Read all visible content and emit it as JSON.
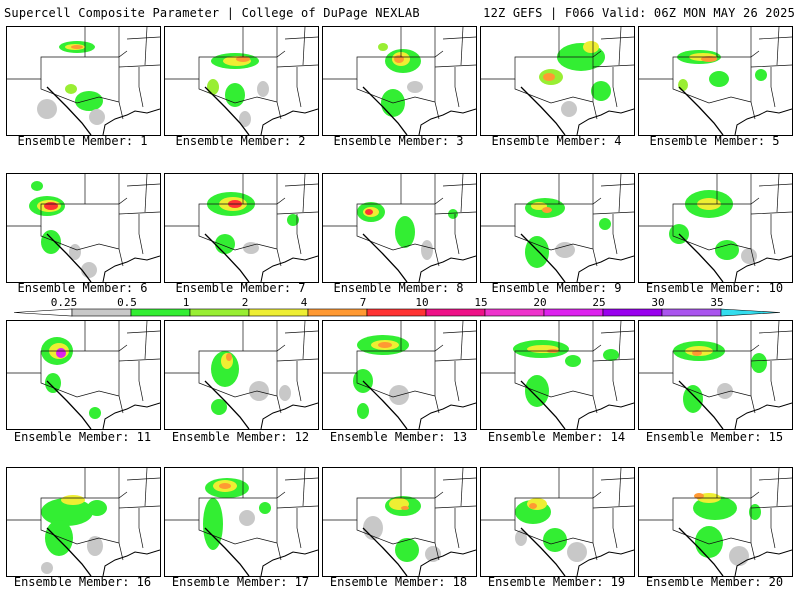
{
  "header": {
    "title_left": "Supercell Composite Parameter | College of DuPage NEXLAB",
    "title_right": "12Z GEFS | F066 Valid: 06Z MON MAY 26 2025"
  },
  "colorbar": {
    "ticks": [
      "0.25",
      "0.5",
      "1",
      "2",
      "4",
      "7",
      "10",
      "15",
      "20",
      "25",
      "30",
      "35"
    ],
    "colors": [
      "#c8c8c8",
      "#33ee33",
      "#99ee33",
      "#eeee33",
      "#ff9933",
      "#ff3333",
      "#ee1188",
      "#ee33cc",
      "#dd22ee",
      "#9900ee",
      "#aa55ee",
      "#33ddee"
    ]
  },
  "panels": [
    {
      "label": "Ensemble Member: 1"
    },
    {
      "label": "Ensemble Member: 2"
    },
    {
      "label": "Ensemble Member: 3"
    },
    {
      "label": "Ensemble Member: 4"
    },
    {
      "label": "Ensemble Member: 5"
    },
    {
      "label": "Ensemble Member: 6"
    },
    {
      "label": "Ensemble Member: 7"
    },
    {
      "label": "Ensemble Member: 8"
    },
    {
      "label": "Ensemble Member: 9"
    },
    {
      "label": "Ensemble Member: 10"
    },
    {
      "label": "Ensemble Member: 11"
    },
    {
      "label": "Ensemble Member: 12"
    },
    {
      "label": "Ensemble Member: 13"
    },
    {
      "label": "Ensemble Member: 14"
    },
    {
      "label": "Ensemble Member: 15"
    },
    {
      "label": "Ensemble Member: 16"
    },
    {
      "label": "Ensemble Member: 17"
    },
    {
      "label": "Ensemble Member: 18"
    },
    {
      "label": "Ensemble Member: 19"
    },
    {
      "label": "Ensemble Member: 20"
    }
  ]
}
